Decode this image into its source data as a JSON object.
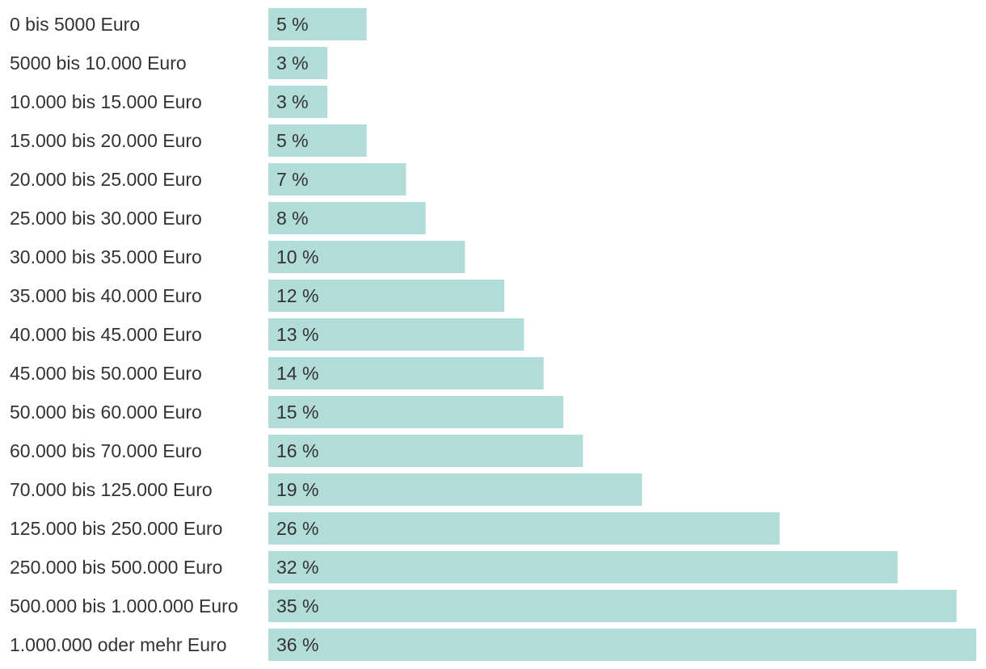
{
  "chart_data": {
    "type": "bar",
    "orientation": "horizontal",
    "categories": [
      "0 bis 5000 Euro",
      "5000 bis 10.000 Euro",
      "10.000 bis 15.000 Euro",
      "15.000 bis 20.000 Euro",
      "20.000 bis 25.000 Euro",
      "25.000 bis 30.000 Euro",
      "30.000 bis 35.000 Euro",
      "35.000 bis 40.000 Euro",
      "40.000 bis 45.000 Euro",
      "45.000 bis 50.000 Euro",
      "50.000 bis 60.000 Euro",
      "60.000 bis 70.000 Euro",
      "70.000 bis 125.000 Euro",
      "125.000 bis 250.000 Euro",
      "250.000 bis 500.000 Euro",
      "500.000 bis 1.000.000 Euro",
      "1.000.000 oder mehr Euro"
    ],
    "values": [
      5,
      3,
      3,
      5,
      7,
      8,
      10,
      12,
      13,
      14,
      15,
      16,
      19,
      26,
      32,
      35,
      36
    ],
    "data_labels": [
      "5 %",
      "3 %",
      "3 %",
      "5 %",
      "7 %",
      "8 %",
      "10 %",
      "12 %",
      "13 %",
      "14 %",
      "15 %",
      "16 %",
      "19 %",
      "26 %",
      "32 %",
      "35 %",
      "36 %"
    ],
    "unit": "%",
    "xlim": [
      0,
      36
    ],
    "grid": false,
    "legend": "none",
    "bar_color": "#b2dcd8",
    "text_color": "#333333"
  }
}
